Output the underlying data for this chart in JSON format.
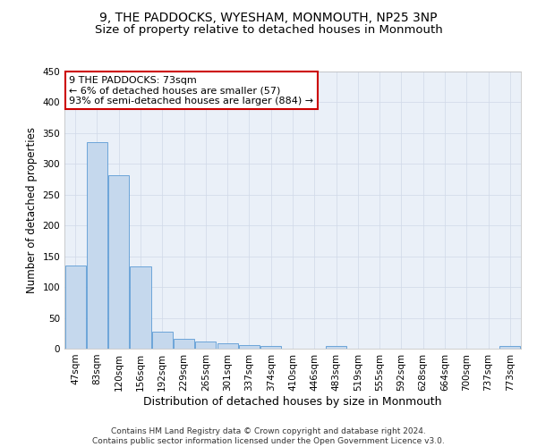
{
  "title": "9, THE PADDOCKS, WYESHAM, MONMOUTH, NP25 3NP",
  "subtitle": "Size of property relative to detached houses in Monmouth",
  "xlabel": "Distribution of detached houses by size in Monmouth",
  "ylabel": "Number of detached properties",
  "footer_line1": "Contains HM Land Registry data © Crown copyright and database right 2024.",
  "footer_line2": "Contains public sector information licensed under the Open Government Licence v3.0.",
  "annotation_line1": "9 THE PADDOCKS: 73sqm",
  "annotation_line2": "← 6% of detached houses are smaller (57)",
  "annotation_line3": "93% of semi-detached houses are larger (884) →",
  "categories": [
    "47sqm",
    "83sqm",
    "120sqm",
    "156sqm",
    "192sqm",
    "229sqm",
    "265sqm",
    "301sqm",
    "337sqm",
    "374sqm",
    "410sqm",
    "446sqm",
    "483sqm",
    "519sqm",
    "555sqm",
    "592sqm",
    "628sqm",
    "664sqm",
    "700sqm",
    "737sqm",
    "773sqm"
  ],
  "values": [
    135,
    335,
    281,
    133,
    27,
    16,
    11,
    8,
    6,
    4,
    0,
    0,
    4,
    0,
    0,
    0,
    0,
    0,
    0,
    0,
    4
  ],
  "bar_color": "#c5d8ed",
  "bar_edge_color": "#5b9bd5",
  "annotation_box_color": "#ffffff",
  "annotation_box_edge_color": "#cc0000",
  "ylim": [
    0,
    450
  ],
  "yticks": [
    0,
    50,
    100,
    150,
    200,
    250,
    300,
    350,
    400,
    450
  ],
  "bg_color": "#ffffff",
  "grid_color": "#d0d8e8",
  "title_fontsize": 10,
  "subtitle_fontsize": 9.5,
  "ylabel_fontsize": 8.5,
  "xlabel_fontsize": 9,
  "tick_fontsize": 7.5,
  "annotation_fontsize": 8,
  "footer_fontsize": 6.5
}
